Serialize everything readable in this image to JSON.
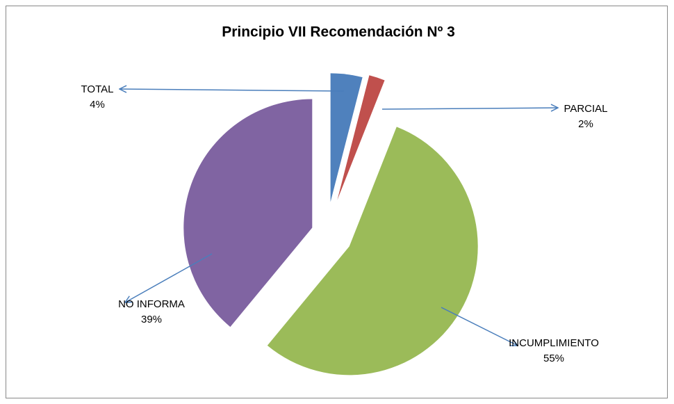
{
  "chart_data": {
    "type": "pie",
    "title": "Principio VII Recomendación Nº 3",
    "categories": [
      "TOTAL",
      "PARCIAL",
      "INCUMPLIMIENTO",
      "NO INFORMA"
    ],
    "values": [
      4,
      2,
      55,
      39
    ],
    "value_labels": [
      "4%",
      "2%",
      "55%",
      "39%"
    ],
    "colors": [
      "#4f81bd",
      "#c0504d",
      "#9bbb59",
      "#8064a2"
    ]
  }
}
